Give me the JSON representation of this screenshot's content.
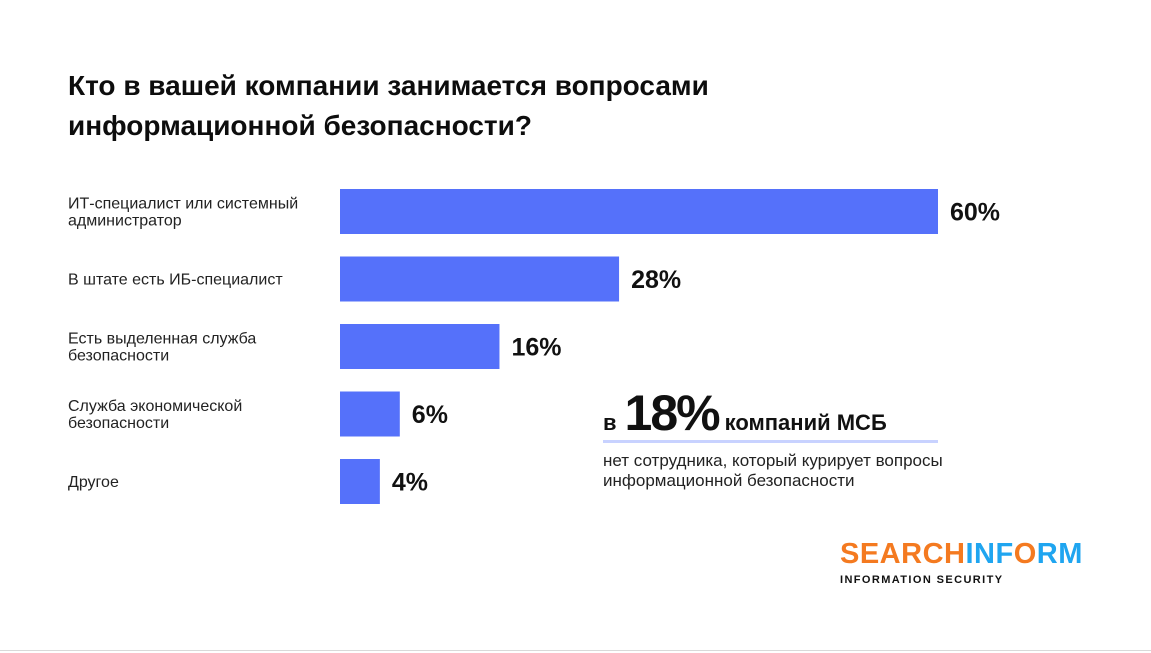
{
  "chart_data": {
    "type": "bar",
    "orientation": "horizontal",
    "title": "Кто в вашей компании занимается вопросами информационной безопасности?",
    "categories": [
      [
        "ИТ-специалист или системный",
        "администратор"
      ],
      [
        "В штате есть ИБ-специалист"
      ],
      [
        "Есть выделенная служба",
        "безопасности"
      ],
      [
        "Служба экономической",
        "безопасности"
      ],
      [
        "Другое"
      ]
    ],
    "values": [
      60,
      28,
      16,
      6,
      4
    ],
    "value_labels": [
      "60%",
      "28%",
      "16%",
      "6%",
      "4%"
    ],
    "xlim": [
      0,
      60
    ],
    "bar_color": "#5571fa",
    "grid": false,
    "legend": false
  },
  "callout": {
    "prefix": "в",
    "percent": "18%",
    "suffix": "компаний МСБ",
    "text": "нет сотрудника, который курирует вопросы информационной безопасности"
  },
  "logo": {
    "part1": "SEARCH",
    "part2": "INF",
    "part3": "O",
    "part4": "RM",
    "subtitle": "INFORMATION SECURITY",
    "color1": "#f47a20",
    "color2": "#1fa5f0"
  }
}
